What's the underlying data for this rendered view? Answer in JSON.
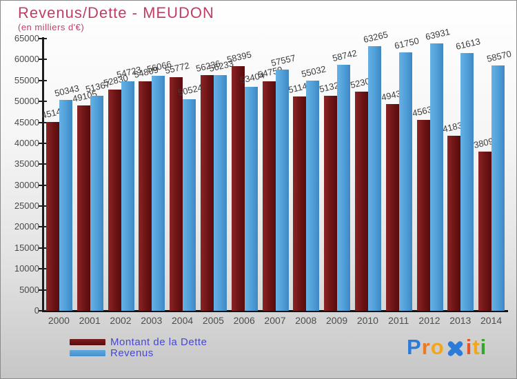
{
  "header": {
    "title": "Revenus/Dette - MEUDON",
    "subtitle": "(en milliers d'€)"
  },
  "chart_data": {
    "type": "bar",
    "categories": [
      "2000",
      "2001",
      "2002",
      "2003",
      "2004",
      "2005",
      "2006",
      "2007",
      "2008",
      "2009",
      "2010",
      "2011",
      "2012",
      "2013",
      "2014"
    ],
    "series": [
      {
        "name": "Montant de la Dette",
        "color": "#6d1415",
        "values": [
          45141,
          49105,
          52830,
          54809,
          55772,
          56236,
          58395,
          54759,
          51148,
          51325,
          52307,
          49434,
          45639,
          41834,
          38096
        ]
      },
      {
        "name": "Revenus",
        "color": "#4f9ed8",
        "values": [
          50343,
          51367,
          54723,
          56066,
          50524,
          56233,
          53404,
          57557,
          55032,
          58742,
          63265,
          61750,
          63931,
          61613,
          58570
        ]
      }
    ],
    "ylim": [
      0,
      65000
    ],
    "ytick_step": 5000,
    "grid": false,
    "legend_position": "bottom-left",
    "value_labels": "above-bars-rotated"
  },
  "legend": {
    "dette_label": "Montant de la Dette",
    "revenus_label": "Revenus",
    "text_color": "#4747d1"
  },
  "colors": {
    "title": "#c13d63",
    "dette_bar": "#6d1415",
    "revenus_bar": "#4f9ed8",
    "axis": "#1c1c1c",
    "tick_text": "#4a4a4a"
  },
  "logo": {
    "name": "Proxiti",
    "letters": [
      {
        "ch": "P",
        "color": "#2d7bd9"
      },
      {
        "ch": "r",
        "color": "#ee7a1d"
      },
      {
        "ch": "o",
        "color": "#f2a71b"
      },
      {
        "ch": "x",
        "color": "#2d7bd9",
        "shape": "cross"
      },
      {
        "ch": "i",
        "color": "#e4562a"
      },
      {
        "ch": "t",
        "color": "#f2a71b"
      },
      {
        "ch": "i",
        "color": "#38a42c"
      }
    ]
  }
}
